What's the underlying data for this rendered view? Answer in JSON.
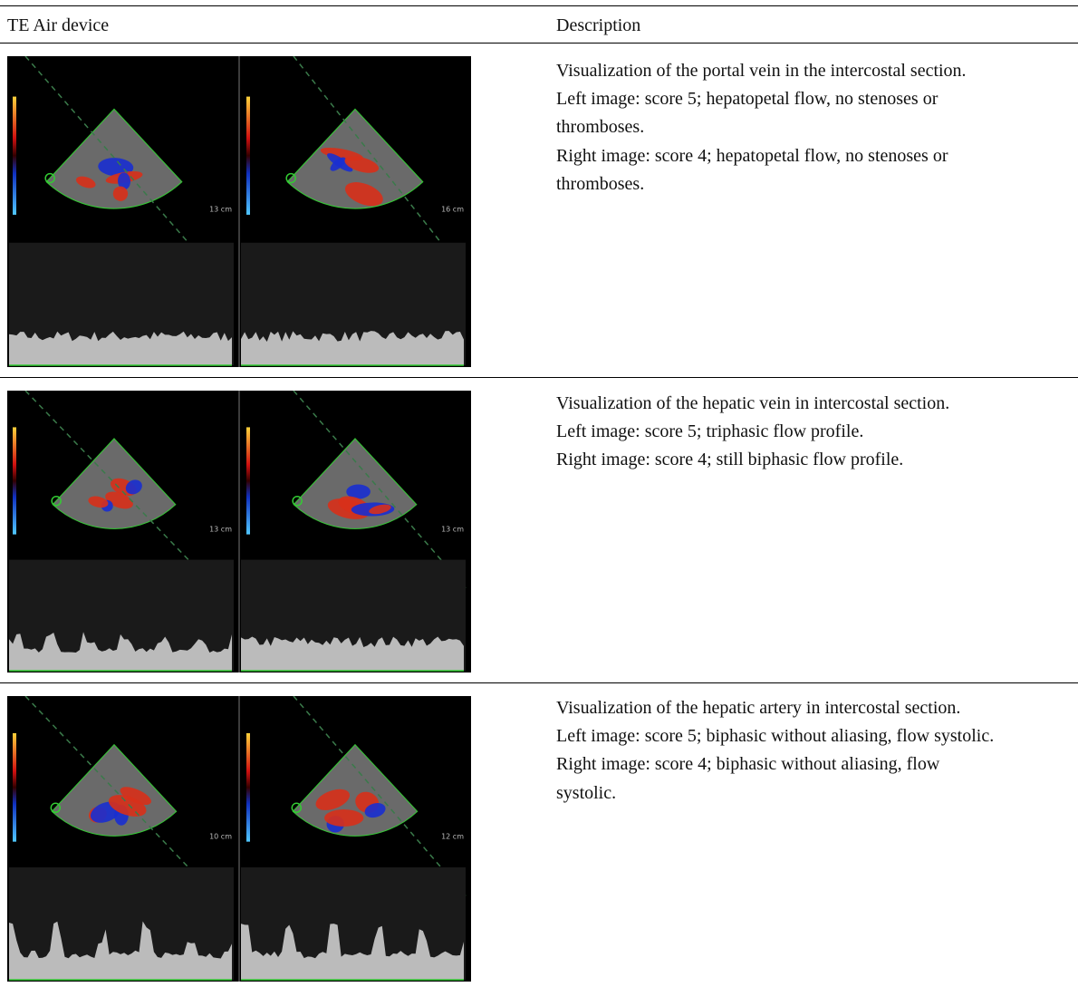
{
  "header": {
    "device": "TE Air device",
    "description": "Description"
  },
  "rows": [
    {
      "image": {
        "depths": [
          "13 cm",
          "16 cm"
        ]
      },
      "description": [
        "Visualization of the portal vein in the intercostal section.",
        "Left image: score 5; hepatopetal flow, no stenoses or",
        "thromboses.",
        "Right image: score 4; hepatopetal flow, no stenoses or",
        "thromboses."
      ]
    },
    {
      "image": {
        "depths": [
          "13 cm",
          "13 cm"
        ]
      },
      "description": [
        "Visualization of the hepatic vein in intercostal section.",
        "Left image: score 5; triphasic flow profile.",
        "Right image: score 4; still biphasic flow profile."
      ]
    },
    {
      "image": {
        "depths": [
          "10 cm",
          "12 cm"
        ]
      },
      "description": [
        "Visualization of the hepatic artery in intercostal section.",
        "Left image: score 5; biphasic without aliasing, flow systolic.",
        "Right image: score 4; biphasic without aliasing, flow",
        "systolic."
      ]
    }
  ]
}
